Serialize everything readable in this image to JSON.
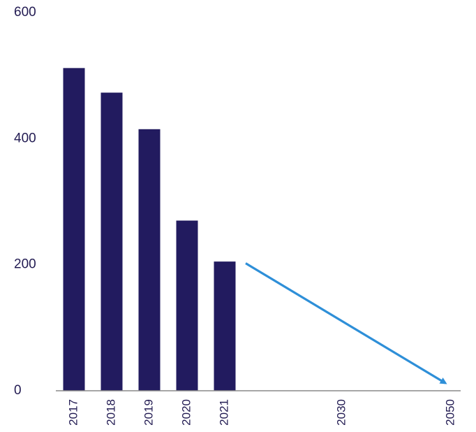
{
  "chart_data": {
    "type": "bar",
    "title": "",
    "xlabel": "",
    "ylabel": "",
    "ylim": [
      0,
      600
    ],
    "yticks": [
      0,
      200,
      400,
      600
    ],
    "ytick_labels": [
      "0",
      "200",
      "400",
      "600"
    ],
    "categories": [
      "2017",
      "2018",
      "2019",
      "2020",
      "2021",
      "2030",
      "2050"
    ],
    "values": [
      512,
      473,
      415,
      270,
      205,
      null,
      null
    ],
    "grid": false,
    "legend": "none",
    "annotations": [
      {
        "type": "arrow",
        "description": "downward trend arrow",
        "from": {
          "x": "2021",
          "y": 200
        },
        "to": {
          "x": "2050",
          "y": 10
        }
      }
    ],
    "colors": {
      "bars": "#221b5f",
      "arrow": "#2e8fd8",
      "axis": "#8a8a8a",
      "text": "#221b52"
    }
  }
}
